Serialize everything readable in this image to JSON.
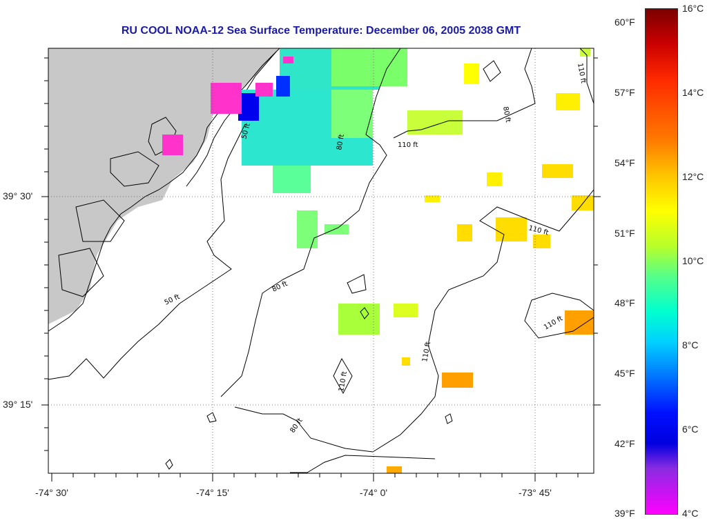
{
  "title": "RU COOL  NOAA-12  Sea Surface Temperature:  December 06, 2005 2038 GMT",
  "lat_labels": [
    "39° 30'",
    "39° 15'"
  ],
  "lon_labels": [
    "-74° 30'",
    "-74° 15'",
    "-74° 0'",
    "-73° 45'"
  ],
  "contour_labels": [
    "50 ft",
    "80 ft",
    "110 ft"
  ],
  "colorbar": {
    "fahrenheit": [
      "60°F",
      "57°F",
      "54°F",
      "51°F",
      "48°F",
      "45°F",
      "42°F",
      "39°F"
    ],
    "celsius": [
      "16°C",
      "14°C",
      "12°C",
      "10°C",
      "8°C",
      "6°C",
      "4°C"
    ]
  },
  "colors": {
    "land": "#c8c8c8",
    "title": "#1a1aa8"
  }
}
